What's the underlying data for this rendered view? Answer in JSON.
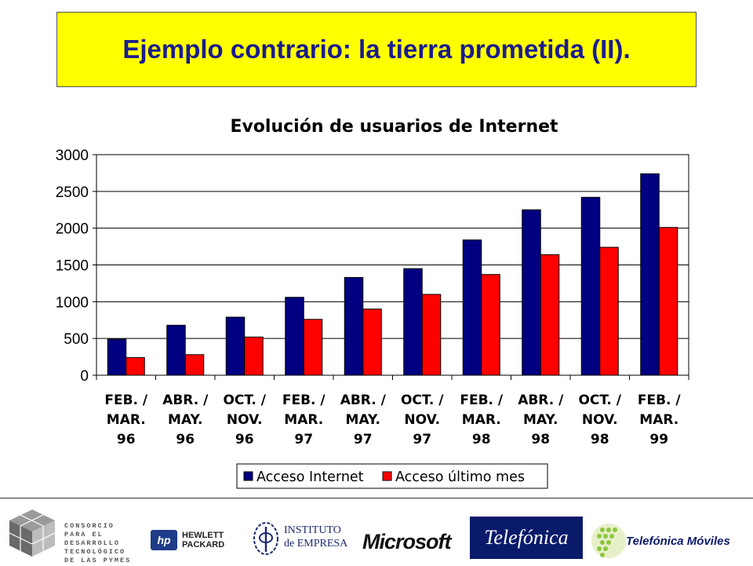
{
  "slide": {
    "title": "Ejemplo contrario: la tierra prometida (II)."
  },
  "chart_data": {
    "type": "bar",
    "title": "Evolución de usuarios de Internet",
    "xlabel": "",
    "ylabel": "",
    "ylim": [
      0,
      3000
    ],
    "yticks": [
      "0",
      "500",
      "1000",
      "1500",
      "2000",
      "2500",
      "3000"
    ],
    "grid": true,
    "legend_position": "bottom",
    "categories": [
      [
        "FEB. /",
        "MAR.",
        "96"
      ],
      [
        "ABR. /",
        "MAY.",
        "96"
      ],
      [
        "OCT. /",
        "NOV.",
        "96"
      ],
      [
        "FEB. /",
        "MAR.",
        "97"
      ],
      [
        "ABR. /",
        "MAY.",
        "97"
      ],
      [
        "OCT. /",
        "NOV.",
        "97"
      ],
      [
        "FEB. /",
        "MAR.",
        "98"
      ],
      [
        "ABR. /",
        "MAY.",
        "98"
      ],
      [
        "OCT. /",
        "NOV.",
        "98"
      ],
      [
        "FEB. /",
        "MAR.",
        "99"
      ]
    ],
    "series": [
      {
        "name": "Acceso Internet",
        "color": "#000080",
        "values": [
          490,
          680,
          790,
          1060,
          1330,
          1450,
          1840,
          2250,
          2420,
          2740
        ]
      },
      {
        "name": "Acceso último mes",
        "color": "#ff0000",
        "values": [
          240,
          280,
          520,
          760,
          900,
          1100,
          1370,
          1640,
          1740,
          2010
        ]
      }
    ]
  },
  "footer": {
    "consorcio_lines": [
      "CONSORCIO",
      "PARA EL",
      "DESARROLLO",
      "TECNOLÓGICO",
      "DE LAS PYMES"
    ],
    "hp": {
      "mark": "hp",
      "line1": "HEWLETT",
      "line2": "PACKARD"
    },
    "ie": {
      "line1": "INSTITUTO",
      "line2": "de EMPRESA"
    },
    "microsoft": "Microsoft",
    "telefonica": "Telefónica",
    "telefonica_moviles": "Telefónica Móviles"
  }
}
